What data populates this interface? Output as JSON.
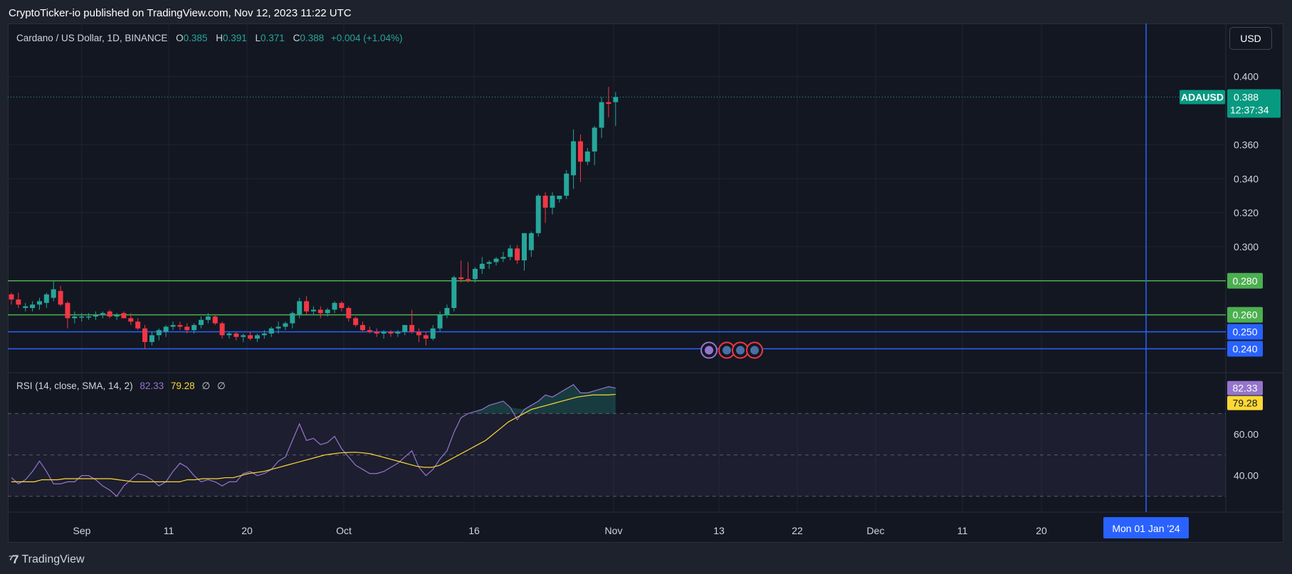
{
  "header": {
    "published": "CryptoTicker-io published on TradingView.com, Nov 12, 2023 11:22 UTC"
  },
  "footer": {
    "brand": "TradingView"
  },
  "currency_button": "USD",
  "legend": {
    "symbol": "Cardano / US Dollar, 1D, BINANCE",
    "o_label": "O",
    "o": "0.385",
    "h_label": "H",
    "h": "0.391",
    "l_label": "L",
    "l": "0.371",
    "c_label": "C",
    "c": "0.388",
    "change": "+0.004 (+1.04%)"
  },
  "rsi_legend": {
    "name": "RSI (14, close, SMA, 14, 2)",
    "rsi": "82.33",
    "ma": "79.28",
    "extra1": "∅",
    "extra2": "∅"
  },
  "colors": {
    "up": "#26a69a",
    "down": "#f23645",
    "green_line": "#4caf50",
    "blue_line": "#2962ff",
    "rsi": "#9575cd",
    "rsi_ma": "#fdd835",
    "price_tag": "#089981"
  },
  "chart_data": [
    {
      "type": "candlestick",
      "symbol": "ADAUSD",
      "interval": "1D",
      "x_ticks": [
        "Sep",
        "11",
        "20",
        "Oct",
        "16",
        "Nov",
        "13",
        "22",
        "Dec",
        "11",
        "20"
      ],
      "y_ticks": [
        "0.300",
        "0.320",
        "0.340",
        "0.360",
        "0.400"
      ],
      "ylim": [
        0.236,
        0.407
      ],
      "last_price_tag": {
        "symbol": "ADAUSD",
        "price": "0.388",
        "countdown": "12:37:34"
      },
      "horizontal_levels": [
        {
          "value": 0.28,
          "label": "0.280",
          "color": "#4caf50"
        },
        {
          "value": 0.26,
          "label": "0.260",
          "color": "#4caf50"
        },
        {
          "value": 0.25,
          "label": "0.250",
          "color": "#2962ff"
        },
        {
          "value": 0.24,
          "label": "0.240",
          "color": "#2962ff"
        }
      ],
      "vertical_marker": {
        "label": "Mon 01 Jan '24"
      },
      "candles_ohlc": [
        [
          0.272,
          0.273,
          0.266,
          0.269
        ],
        [
          0.269,
          0.273,
          0.264,
          0.266
        ],
        [
          0.264,
          0.267,
          0.262,
          0.265
        ],
        [
          0.264,
          0.268,
          0.262,
          0.266
        ],
        [
          0.266,
          0.27,
          0.263,
          0.268
        ],
        [
          0.267,
          0.273,
          0.264,
          0.272
        ],
        [
          0.27,
          0.28,
          0.268,
          0.275
        ],
        [
          0.274,
          0.277,
          0.265,
          0.266
        ],
        [
          0.267,
          0.268,
          0.252,
          0.258
        ],
        [
          0.258,
          0.262,
          0.255,
          0.259
        ],
        [
          0.259,
          0.261,
          0.256,
          0.259
        ],
        [
          0.259,
          0.261,
          0.257,
          0.259
        ],
        [
          0.259,
          0.262,
          0.257,
          0.26
        ],
        [
          0.26,
          0.262,
          0.258,
          0.261
        ],
        [
          0.262,
          0.263,
          0.258,
          0.259
        ],
        [
          0.259,
          0.261,
          0.257,
          0.26
        ],
        [
          0.261,
          0.262,
          0.258,
          0.258
        ],
        [
          0.258,
          0.261,
          0.254,
          0.256
        ],
        [
          0.256,
          0.258,
          0.251,
          0.252
        ],
        [
          0.252,
          0.254,
          0.24,
          0.244
        ],
        [
          0.244,
          0.25,
          0.242,
          0.248
        ],
        [
          0.248,
          0.252,
          0.245,
          0.251
        ],
        [
          0.25,
          0.254,
          0.247,
          0.253
        ],
        [
          0.253,
          0.256,
          0.251,
          0.254
        ],
        [
          0.254,
          0.256,
          0.251,
          0.253
        ],
        [
          0.253,
          0.255,
          0.249,
          0.251
        ],
        [
          0.251,
          0.255,
          0.249,
          0.254
        ],
        [
          0.254,
          0.259,
          0.252,
          0.257
        ],
        [
          0.257,
          0.261,
          0.255,
          0.259
        ],
        [
          0.259,
          0.26,
          0.254,
          0.255
        ],
        [
          0.255,
          0.256,
          0.246,
          0.248
        ],
        [
          0.248,
          0.25,
          0.246,
          0.249
        ],
        [
          0.249,
          0.25,
          0.245,
          0.247
        ],
        [
          0.247,
          0.249,
          0.244,
          0.248
        ],
        [
          0.248,
          0.25,
          0.245,
          0.246
        ],
        [
          0.246,
          0.249,
          0.244,
          0.248
        ],
        [
          0.248,
          0.251,
          0.246,
          0.249
        ],
        [
          0.249,
          0.253,
          0.247,
          0.252
        ],
        [
          0.252,
          0.256,
          0.249,
          0.253
        ],
        [
          0.253,
          0.256,
          0.251,
          0.255
        ],
        [
          0.255,
          0.262,
          0.252,
          0.261
        ],
        [
          0.26,
          0.27,
          0.258,
          0.268
        ],
        [
          0.268,
          0.271,
          0.26,
          0.262
        ],
        [
          0.262,
          0.265,
          0.26,
          0.263
        ],
        [
          0.263,
          0.265,
          0.258,
          0.261
        ],
        [
          0.261,
          0.264,
          0.259,
          0.263
        ],
        [
          0.263,
          0.268,
          0.261,
          0.267
        ],
        [
          0.267,
          0.268,
          0.262,
          0.264
        ],
        [
          0.264,
          0.265,
          0.256,
          0.258
        ],
        [
          0.258,
          0.259,
          0.253,
          0.254
        ],
        [
          0.254,
          0.256,
          0.25,
          0.251
        ],
        [
          0.251,
          0.253,
          0.249,
          0.25
        ],
        [
          0.25,
          0.252,
          0.247,
          0.249
        ],
        [
          0.249,
          0.251,
          0.246,
          0.25
        ],
        [
          0.25,
          0.251,
          0.247,
          0.249
        ],
        [
          0.249,
          0.251,
          0.247,
          0.25
        ],
        [
          0.25,
          0.254,
          0.248,
          0.254
        ],
        [
          0.254,
          0.263,
          0.249,
          0.25
        ],
        [
          0.25,
          0.252,
          0.244,
          0.248
        ],
        [
          0.248,
          0.25,
          0.242,
          0.246
        ],
        [
          0.246,
          0.254,
          0.245,
          0.252
        ],
        [
          0.252,
          0.262,
          0.25,
          0.26
        ],
        [
          0.26,
          0.266,
          0.258,
          0.264
        ],
        [
          0.264,
          0.283,
          0.262,
          0.282
        ],
        [
          0.282,
          0.292,
          0.279,
          0.281
        ],
        [
          0.281,
          0.291,
          0.279,
          0.28
        ],
        [
          0.281,
          0.288,
          0.279,
          0.287
        ],
        [
          0.287,
          0.294,
          0.284,
          0.29
        ],
        [
          0.29,
          0.292,
          0.287,
          0.291
        ],
        [
          0.291,
          0.294,
          0.289,
          0.293
        ],
        [
          0.293,
          0.297,
          0.291,
          0.294
        ],
        [
          0.294,
          0.301,
          0.292,
          0.299
        ],
        [
          0.299,
          0.301,
          0.29,
          0.292
        ],
        [
          0.292,
          0.303,
          0.286,
          0.308
        ],
        [
          0.298,
          0.309,
          0.294,
          0.308
        ],
        [
          0.308,
          0.331,
          0.306,
          0.33
        ],
        [
          0.33,
          0.332,
          0.314,
          0.323
        ],
        [
          0.323,
          0.332,
          0.319,
          0.33
        ],
        [
          0.328,
          0.33,
          0.326,
          0.33
        ],
        [
          0.33,
          0.345,
          0.328,
          0.343
        ],
        [
          0.342,
          0.369,
          0.334,
          0.362
        ],
        [
          0.362,
          0.366,
          0.338,
          0.35
        ],
        [
          0.35,
          0.358,
          0.348,
          0.356
        ],
        [
          0.356,
          0.371,
          0.348,
          0.37
        ],
        [
          0.37,
          0.388,
          0.364,
          0.385
        ],
        [
          0.385,
          0.394,
          0.376,
          0.384
        ],
        [
          0.385,
          0.391,
          0.371,
          0.388
        ]
      ]
    },
    {
      "type": "line",
      "title": "RSI (14, close, SMA, 14, 2)",
      "y_ticks": [
        "40.00",
        "60.00"
      ],
      "bands": [
        30,
        50,
        70
      ],
      "ylim": [
        27.5,
        87
      ],
      "last_values": {
        "rsi": "82.33",
        "ma": "79.28"
      },
      "series": [
        {
          "color": "#9575cd",
          "values": [
            39,
            36,
            38,
            42,
            47,
            42,
            36,
            36,
            37,
            37,
            40,
            40,
            38,
            35,
            33,
            30,
            35,
            38,
            41,
            40,
            38,
            35,
            37,
            42,
            46,
            44,
            40,
            37,
            38,
            37,
            35,
            37,
            37,
            41,
            42,
            40,
            41,
            43,
            47,
            49,
            57,
            65,
            57,
            58,
            55,
            56,
            59,
            53,
            49,
            45,
            43,
            41,
            41,
            42,
            44,
            46,
            49,
            52,
            44,
            40,
            43,
            48,
            52,
            61,
            68,
            70,
            71,
            72,
            74,
            75,
            76,
            73,
            67,
            72,
            74,
            76,
            79,
            78,
            80,
            82,
            84,
            80,
            80,
            81,
            82,
            83,
            82.33
          ]
        },
        {
          "color": "#fdd835",
          "values": [
            37,
            37,
            37,
            37,
            38,
            38,
            38,
            38.5,
            38.5,
            38.5,
            38.5,
            38.5,
            38.5,
            38.5,
            38,
            37.5,
            37,
            37,
            37,
            37,
            37,
            37,
            37,
            38,
            38,
            38.5,
            38.5,
            38.5,
            39,
            39,
            40,
            41,
            41.5,
            42,
            43,
            44,
            45,
            46,
            47,
            48,
            49,
            50,
            50.5,
            51,
            51.2,
            51.3,
            51,
            50.5,
            49.5,
            48.5,
            47.5,
            46.5,
            45.5,
            44.5,
            44,
            44,
            45,
            47,
            49,
            51,
            53,
            55,
            57,
            60,
            63,
            66,
            68,
            70,
            72,
            73,
            74,
            75,
            76,
            77,
            78,
            78.5,
            79,
            79,
            79,
            79.28
          ]
        }
      ]
    }
  ]
}
